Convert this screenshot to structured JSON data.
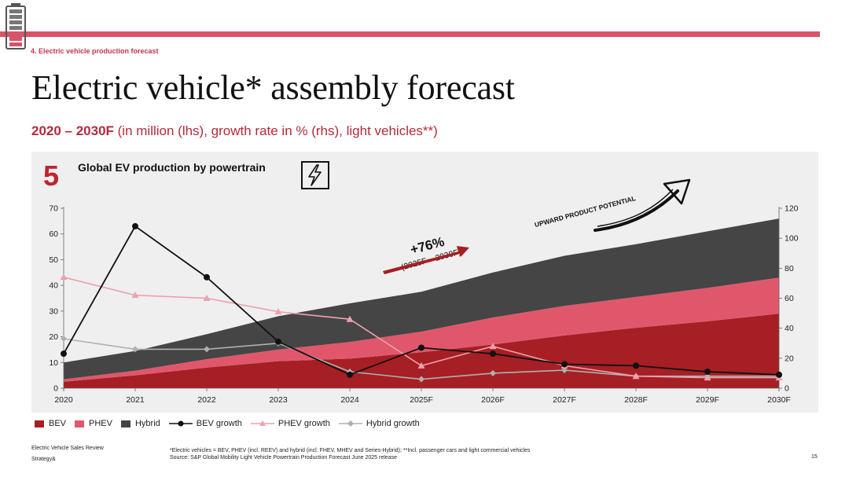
{
  "header": {
    "section_label": "4. Electric vehicle production forecast",
    "title": "Electric vehicle* assembly forecast",
    "subtitle_bold": "2020 – 2030F",
    "subtitle_rest": " (in million (lhs), growth rate in % (rhs), light vehicles**)"
  },
  "chart_header": {
    "number": "5",
    "title": "Global EV production by powertrain",
    "icon": "lightning-bolt-icon"
  },
  "colors": {
    "accent": "#d9546a",
    "bev": "#a51f24",
    "phev": "#e0576c",
    "hybrid": "#454545",
    "bev_growth": "#111111",
    "phev_growth": "#eda1ad",
    "hybrid_growth": "#b0b0b0"
  },
  "chart_data": {
    "type": "area",
    "categories": [
      "2020",
      "2021",
      "2022",
      "2023",
      "2024",
      "2025F",
      "2026F",
      "2027F",
      "2028F",
      "2029F",
      "2030F"
    ],
    "y_left": {
      "ylim": [
        0,
        70
      ],
      "ticks": [
        "0",
        "10",
        "20",
        "30",
        "40",
        "50",
        "60",
        "70"
      ]
    },
    "y_right": {
      "ylim": [
        0,
        120
      ],
      "ticks": [
        "0",
        "20",
        "40",
        "60",
        "80",
        "100",
        "120"
      ]
    },
    "stacked_areas": [
      {
        "name": "BEV",
        "values": [
          2.5,
          5,
          8,
          10.5,
          11.5,
          14,
          17,
          20.5,
          23.5,
          26,
          29
        ]
      },
      {
        "name": "PHEV",
        "values": [
          1,
          1.8,
          3.3,
          4.5,
          6.5,
          8,
          10.5,
          11.5,
          12,
          13,
          14
        ]
      },
      {
        "name": "Hybrid",
        "values": [
          6.5,
          7.7,
          9.7,
          13,
          15,
          15.5,
          17.5,
          19.5,
          20.5,
          22,
          23
        ]
      }
    ],
    "growth_lines": [
      {
        "name": "BEV growth",
        "values": [
          23,
          108,
          74,
          31,
          9,
          27,
          23,
          16,
          15,
          11,
          9
        ]
      },
      {
        "name": "PHEV growth",
        "values": [
          74,
          62,
          60,
          51,
          46,
          15,
          28,
          15,
          8,
          7,
          7
        ]
      },
      {
        "name": "Hybrid growth",
        "values": [
          33,
          26,
          26,
          30,
          11,
          6,
          10,
          12,
          8,
          8,
          8
        ]
      }
    ],
    "annotations": {
      "growth_text": "+76%",
      "growth_period": "(2025F – 2030F)",
      "potential_text": "UPWARD PRODUCT POTENTIAL"
    },
    "legend_position": "bottom"
  },
  "footer": {
    "report_name": "Electric Vehicle Sales Review",
    "brand": "Strategy&",
    "note1": "*Electric vehicles = BEV, PHEV (incl. REEV) and hybrid (incl. FHEV, MHEV and Series-Hybrid); **Incl. passenger cars and light commercial vehicles",
    "note2": "Source: S&P Global Mobility Light Vehicle Powertrain Production Forecast June 2025 release",
    "page_number": "15"
  }
}
